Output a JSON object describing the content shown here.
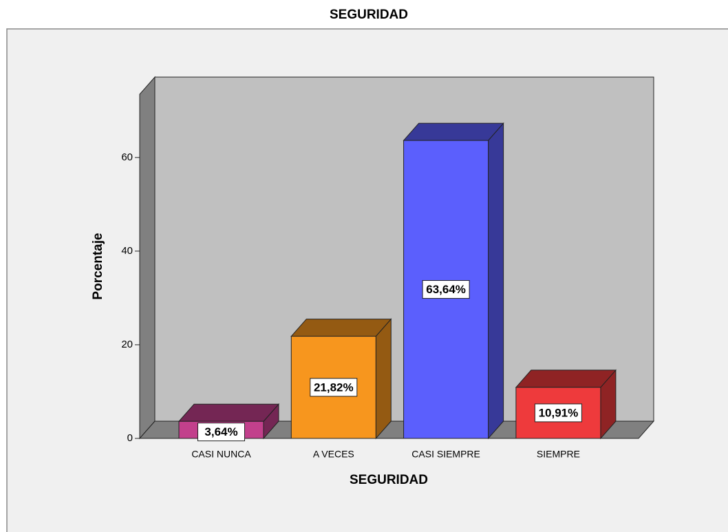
{
  "chart_data": {
    "type": "bar3d",
    "title": "SEGURIDAD",
    "x_label": "SEGURIDAD",
    "y_label": "Porcentaje",
    "categories": [
      "CASI NUNCA",
      "A VECES",
      "CASI SIEMPRE",
      "SIEMPRE"
    ],
    "values": [
      3.64,
      21.82,
      63.64,
      10.91
    ],
    "value_labels": [
      "3,64%",
      "21,82%",
      "63,64%",
      "10,91%"
    ],
    "colors": [
      "#c2408c",
      "#f7961e",
      "#5b5ffd",
      "#ee3a3c"
    ],
    "ylim": [
      0,
      73.5
    ],
    "yticks": [
      0,
      20,
      40,
      60
    ]
  }
}
